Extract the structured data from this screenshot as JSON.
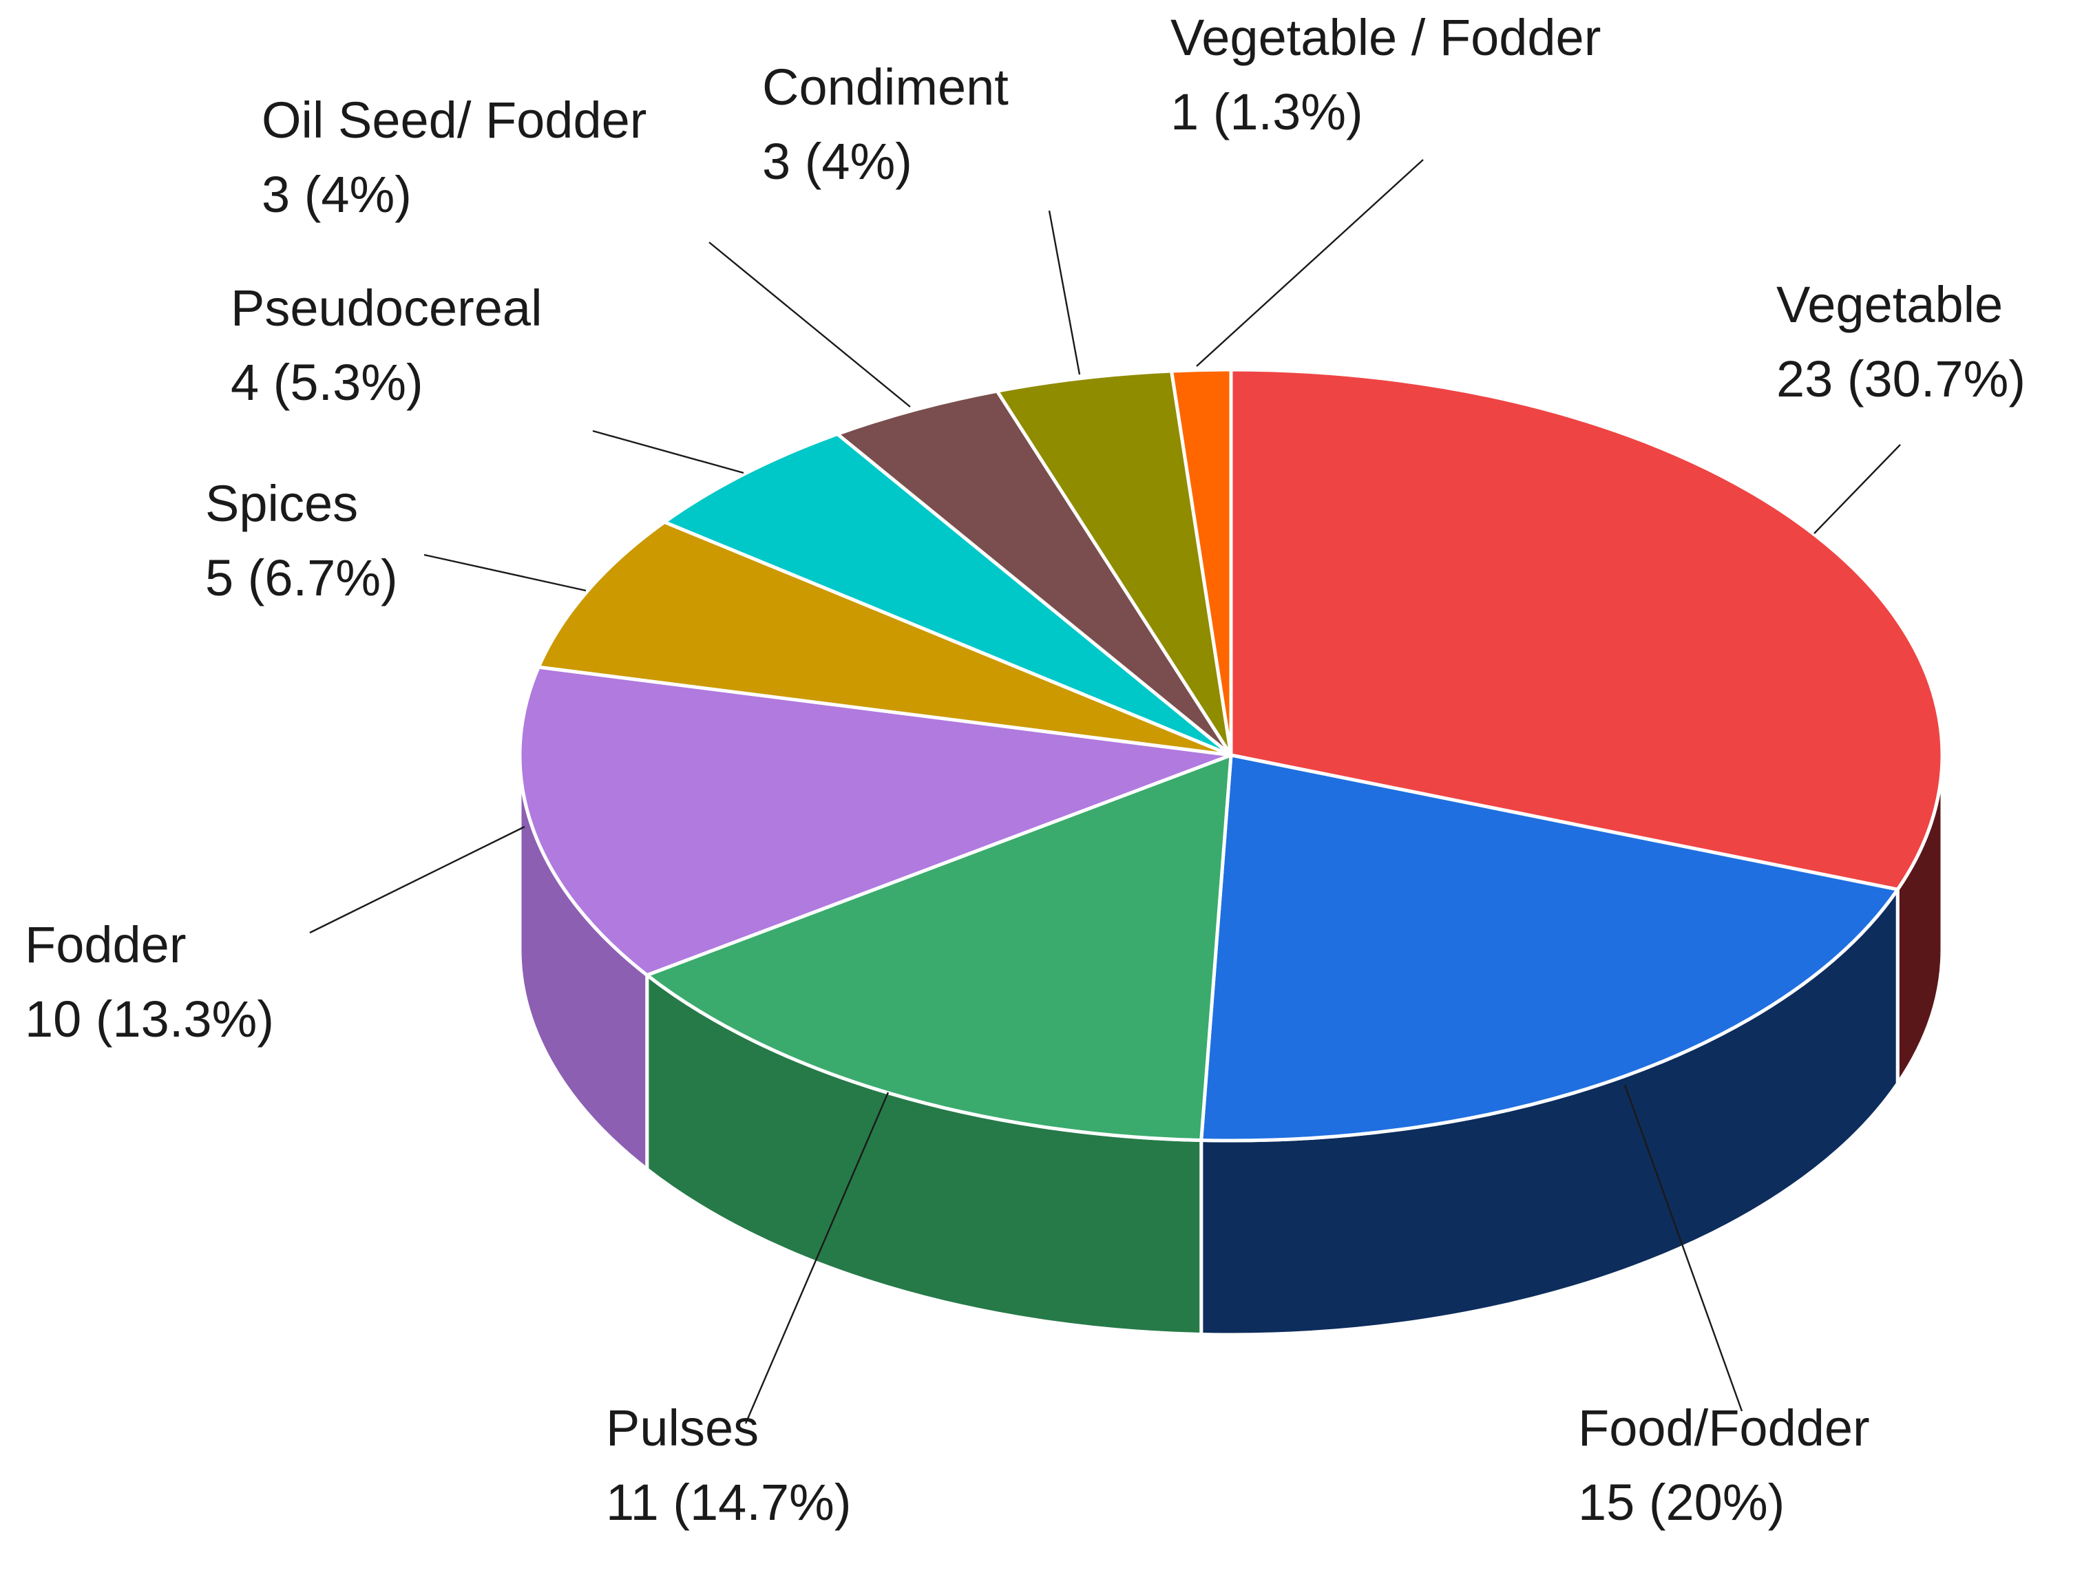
{
  "chart_data": {
    "type": "pie",
    "style": "3d",
    "title": "",
    "slices": [
      {
        "name": "Vegetable",
        "value": 23,
        "percent_label": "30.7%",
        "color": "#ef4444",
        "side_color": "#5a171a"
      },
      {
        "name": "Food/Fodder",
        "value": 15,
        "percent_label": "20%",
        "color": "#1f6fe0",
        "side_color": "#0d2d5c"
      },
      {
        "name": "Pulses",
        "value": 11,
        "percent_label": "14.7%",
        "color": "#3aab6d",
        "side_color": "#267a48"
      },
      {
        "name": "Fodder",
        "value": 10,
        "percent_label": "13.3%",
        "color": "#b07adf",
        "side_color": "#8c5fb3"
      },
      {
        "name": "Spices",
        "value": 5,
        "percent_label": "6.7%",
        "color": "#cc9900",
        "side_color": "#8a6700"
      },
      {
        "name": "Pseudocereal",
        "value": 4,
        "percent_label": "5.3%",
        "color": "#00c8c8",
        "side_color": "#008a8a"
      },
      {
        "name": "Oil Seed/ Fodder",
        "value": 3,
        "percent_label": "4%",
        "color": "#7a4e4e",
        "side_color": "#4f3131"
      },
      {
        "name": "Condiment",
        "value": 3,
        "percent_label": "4%",
        "color": "#8f8c00",
        "side_color": "#5e5c00"
      },
      {
        "name": "Vegetable / Fodder",
        "value": 1,
        "percent_label": "1.3%",
        "color": "#ff6600",
        "side_color": "#a64200"
      }
    ],
    "total": 75,
    "start": "12 o'clock",
    "direction": "clockwise",
    "legend": "none",
    "labels": "outside with leader lines"
  }
}
